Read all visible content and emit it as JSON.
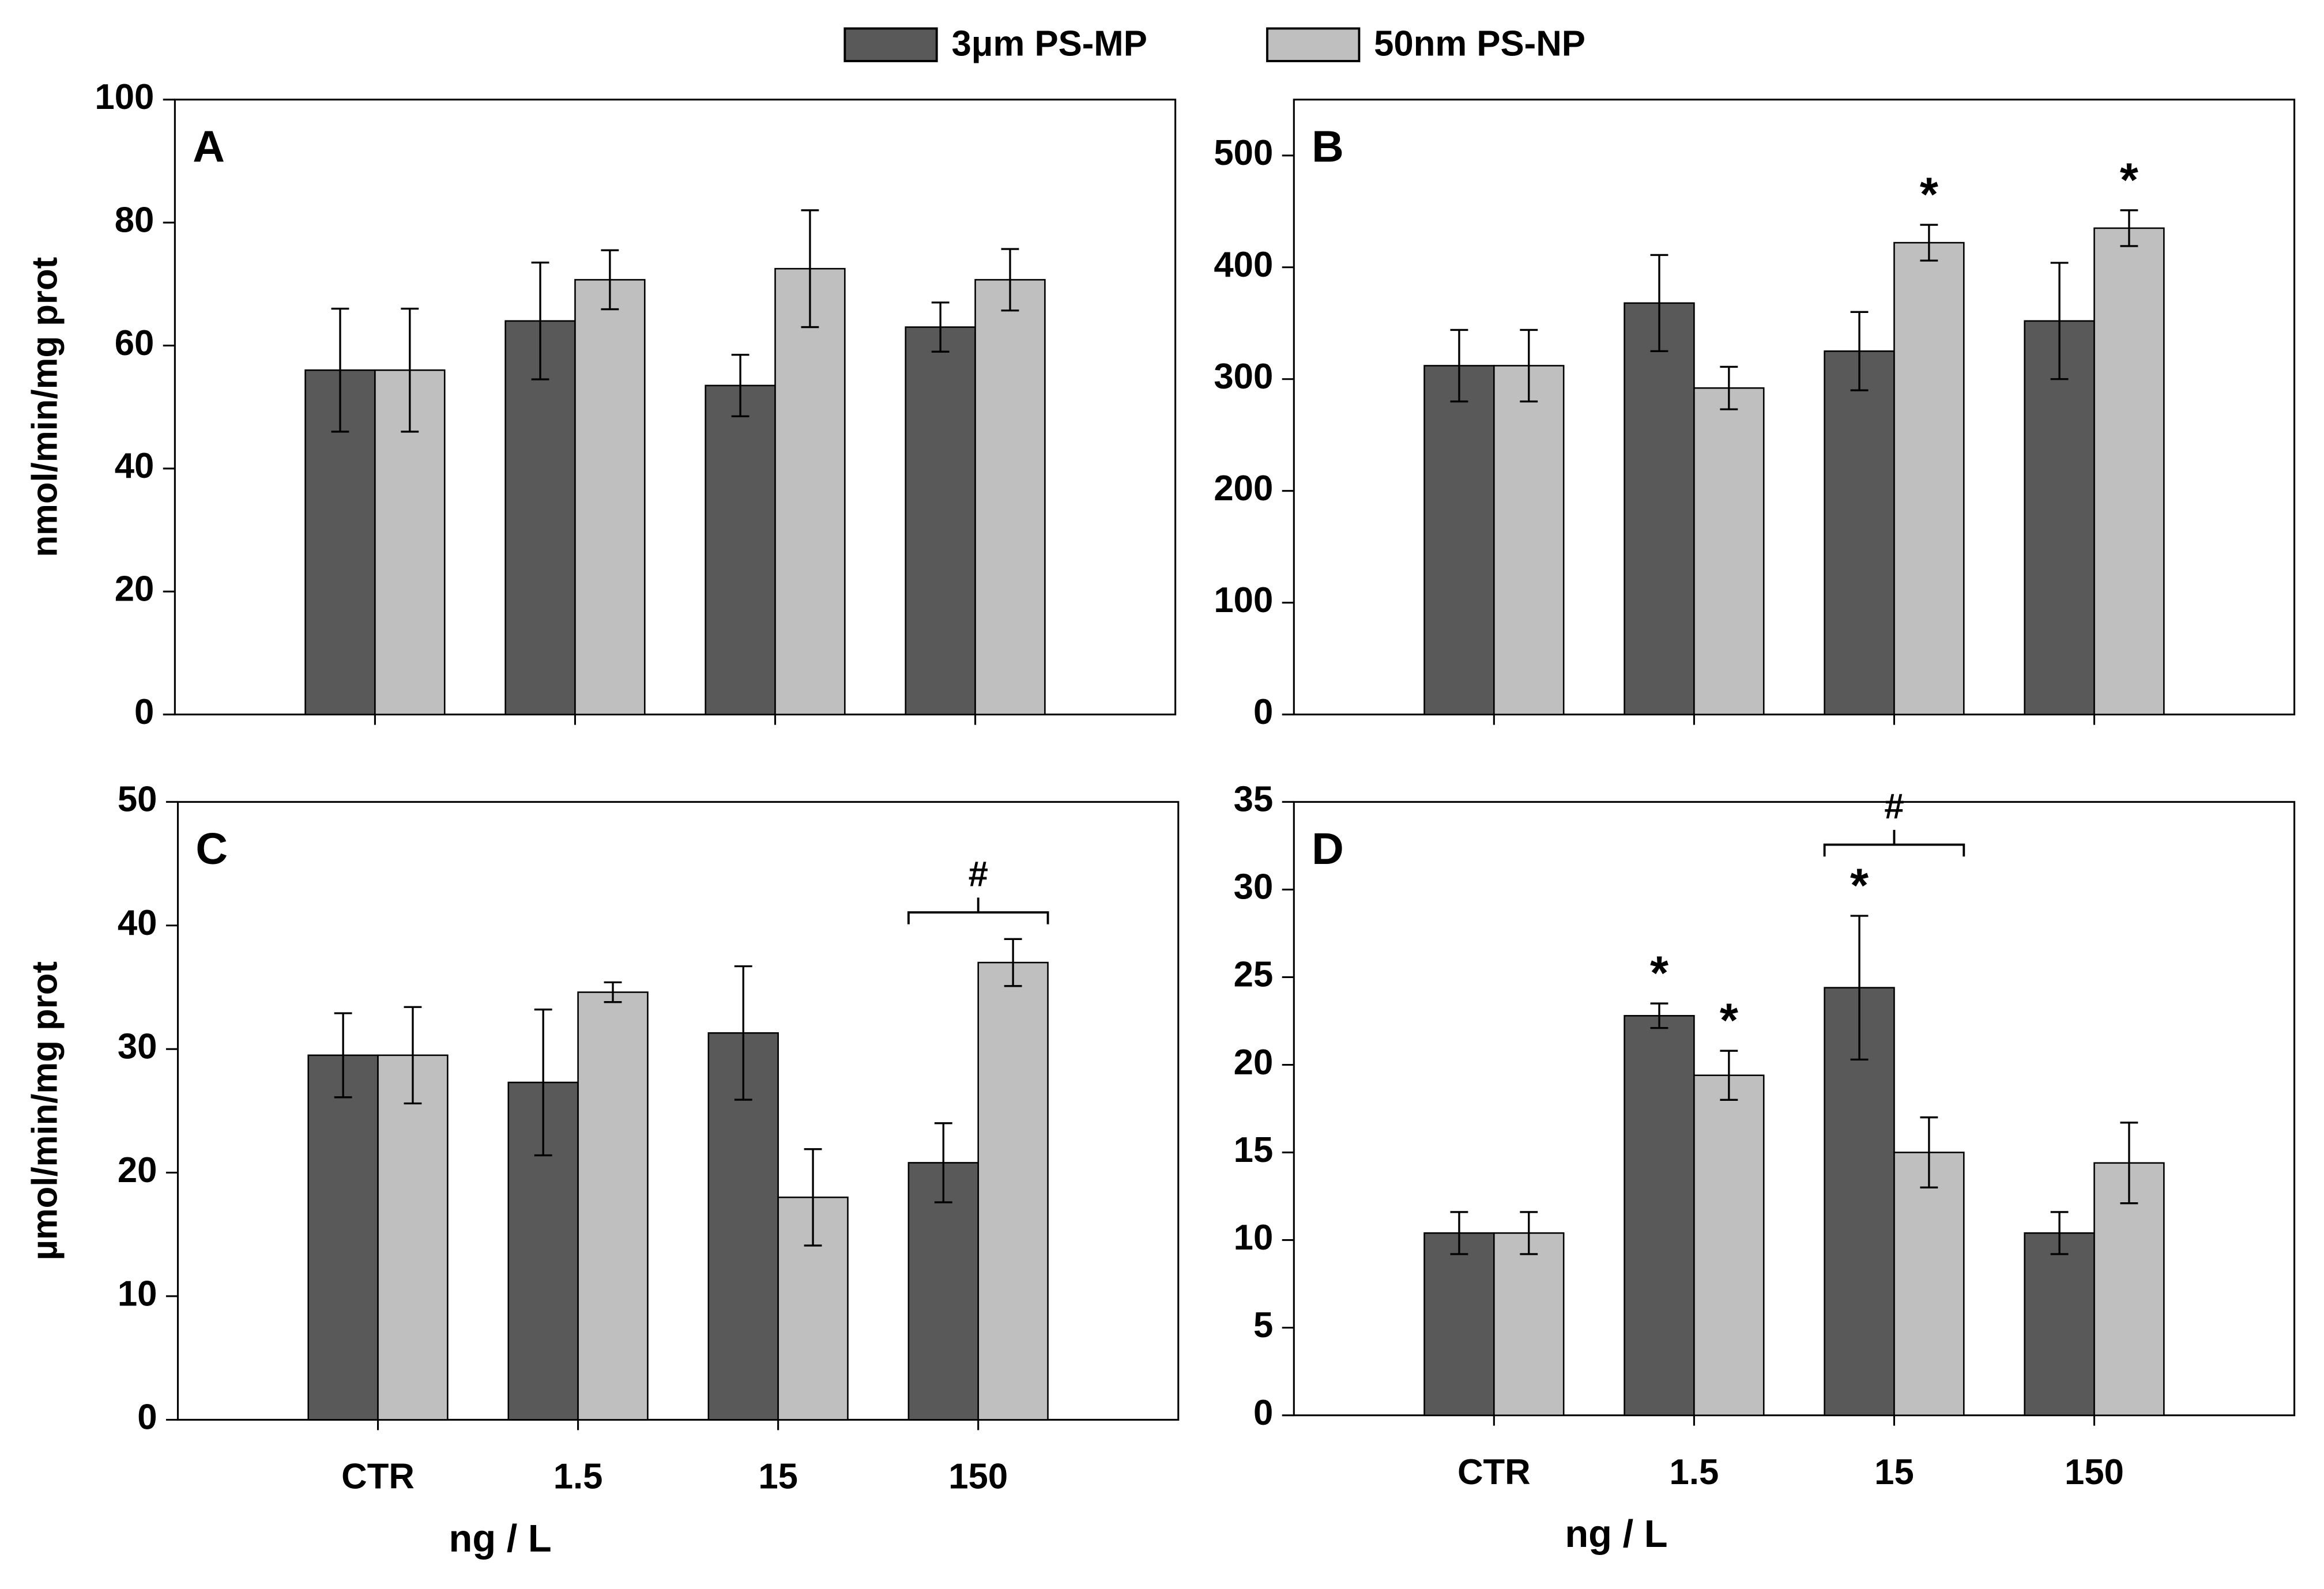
{
  "chart_data": [
    {
      "type": "bar",
      "panel_label": "A",
      "ylabel": "nmol/min/mg prot",
      "ylim": [
        0,
        100
      ],
      "yticks": [
        0,
        20,
        40,
        60,
        80,
        100
      ],
      "series": [
        {
          "name": "3μm PS-MP",
          "color": "#595959",
          "values": [
            56,
            64,
            53.5,
            63
          ],
          "errors": [
            10,
            9.5,
            5,
            4
          ],
          "significance": [
            null,
            null,
            null,
            null
          ]
        },
        {
          "name": "50nm PS-NP",
          "color": "#bfbfbf",
          "values": [
            56,
            70.7,
            72.5,
            70.7
          ],
          "errors": [
            10,
            4.8,
            9.5,
            5
          ],
          "significance": [
            null,
            null,
            null,
            null
          ]
        }
      ]
    },
    {
      "type": "bar",
      "panel_label": "B",
      "ylim": [
        0,
        550
      ],
      "yticks": [
        0,
        100,
        200,
        300,
        400,
        500
      ],
      "series": [
        {
          "color": "#595959",
          "values": [
            312,
            368,
            325,
            352
          ],
          "errors": [
            32,
            43,
            35,
            52
          ],
          "significance": [
            null,
            null,
            null,
            null
          ]
        },
        {
          "color": "#bfbfbf",
          "values": [
            312,
            292,
            422,
            435
          ],
          "errors": [
            32,
            19,
            16,
            16
          ],
          "significance": [
            null,
            null,
            "*",
            "*"
          ]
        }
      ]
    },
    {
      "type": "bar",
      "panel_label": "C",
      "ylabel": "µmol/min/mg prot",
      "xlabel": "ng / L",
      "categories": [
        "CTR",
        "1.5",
        "15",
        "150"
      ],
      "group_labels": [
        null,
        null,
        null,
        "#"
      ],
      "ylim": [
        0,
        50
      ],
      "yticks": [
        0,
        10,
        20,
        30,
        40,
        50
      ],
      "series": [
        {
          "color": "#595959",
          "values": [
            29.5,
            27.3,
            31.3,
            20.8
          ],
          "errors": [
            3.4,
            5.9,
            5.4,
            3.2
          ],
          "significance": [
            null,
            null,
            null,
            null
          ]
        },
        {
          "color": "#bfbfbf",
          "values": [
            29.5,
            34.6,
            18,
            37
          ],
          "errors": [
            3.9,
            0.8,
            3.9,
            1.9
          ],
          "significance": [
            null,
            null,
            null,
            null
          ]
        }
      ]
    },
    {
      "type": "bar",
      "panel_label": "D",
      "xlabel": "ng / L",
      "categories": [
        "CTR",
        "1.5",
        "15",
        "150"
      ],
      "group_labels": [
        null,
        null,
        "#",
        null
      ],
      "ylim": [
        0,
        35
      ],
      "yticks": [
        0,
        5,
        10,
        15,
        20,
        25,
        30,
        35
      ],
      "series": [
        {
          "color": "#595959",
          "values": [
            10.4,
            22.8,
            24.4,
            10.4
          ],
          "errors": [
            1.2,
            0.7,
            4.1,
            1.2
          ],
          "significance": [
            null,
            "*",
            "*",
            null
          ]
        },
        {
          "color": "#bfbfbf",
          "values": [
            10.4,
            19.4,
            15,
            14.4
          ],
          "errors": [
            1.2,
            1.4,
            2,
            2.3
          ],
          "significance": [
            null,
            "*",
            null,
            null
          ]
        }
      ]
    }
  ]
}
